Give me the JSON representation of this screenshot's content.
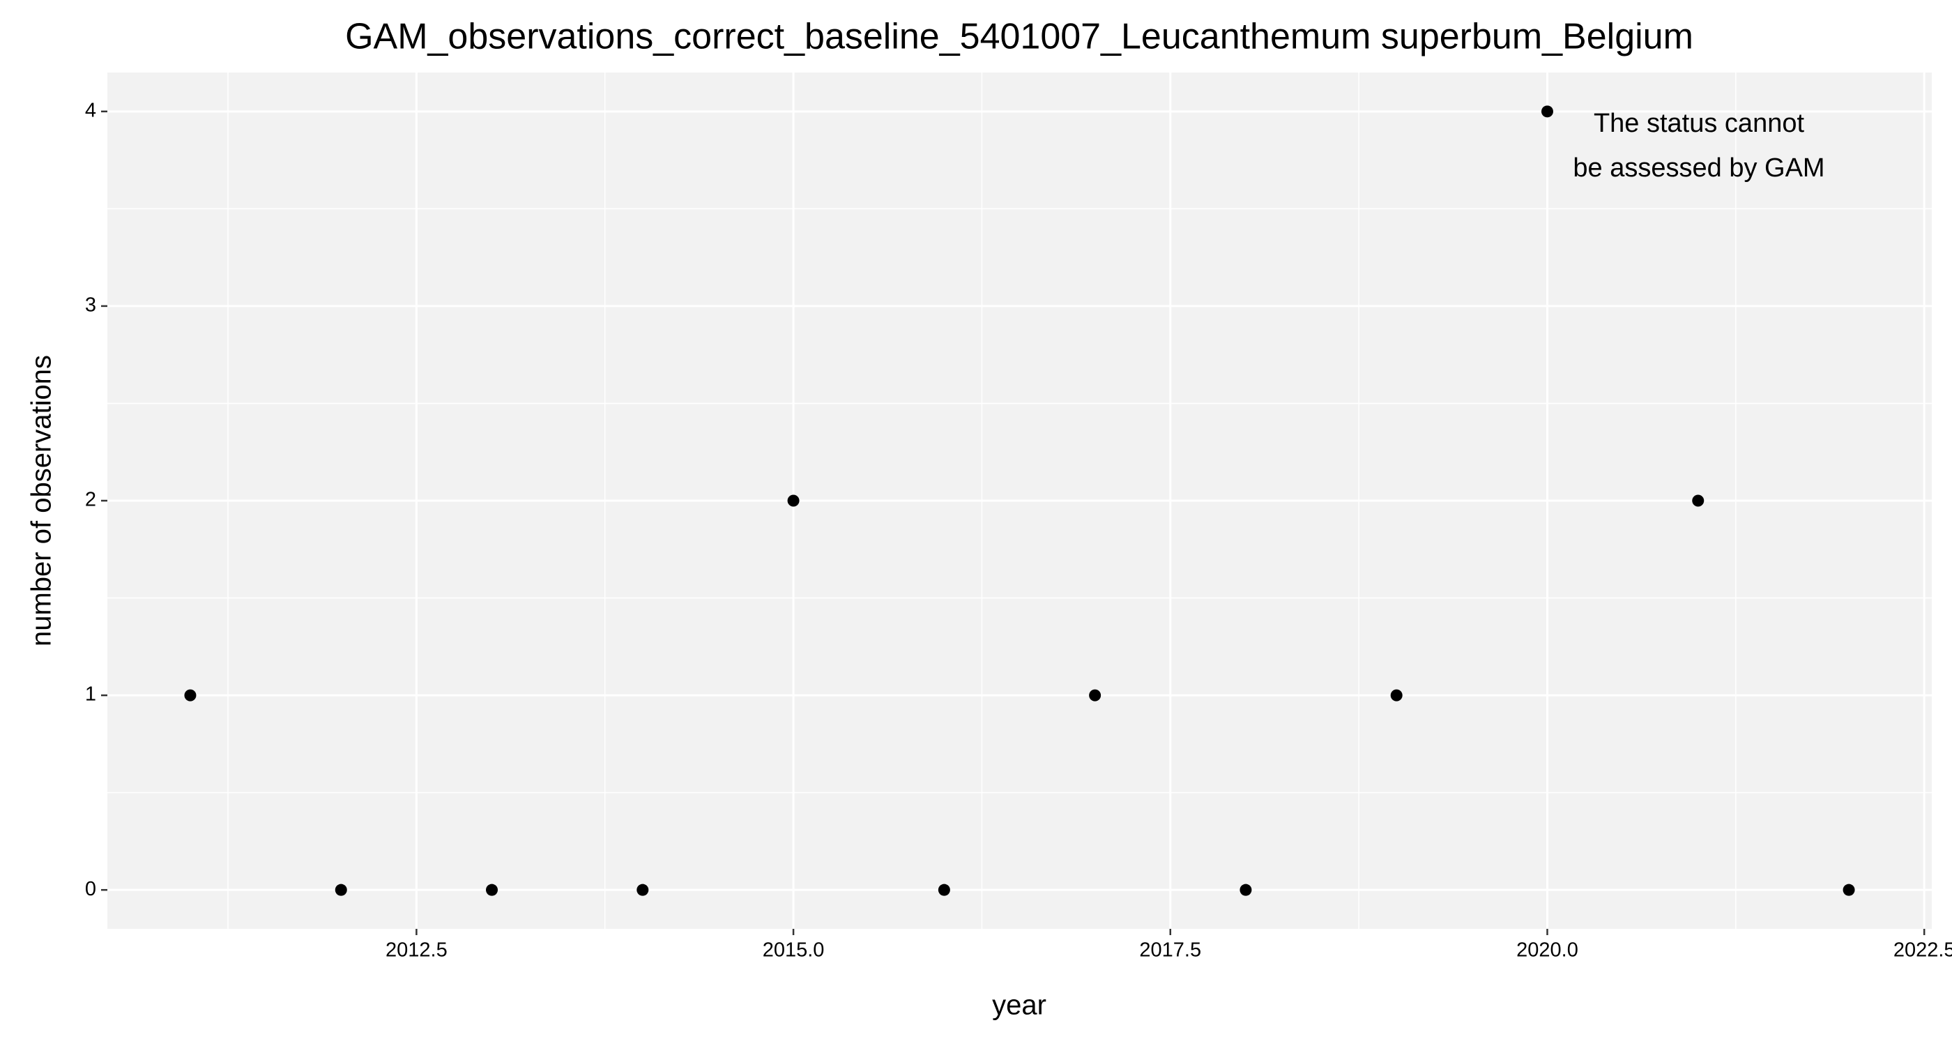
{
  "chart_data": {
    "type": "scatter",
    "title": "GAM_observations_correct_baseline_5401007_Leucanthemum superbum_Belgium",
    "x_label": "year",
    "y_label": "number of observations",
    "annotation": [
      "The status cannot",
      "be assessed by GAM"
    ],
    "annotation_color": "#ff0000",
    "x": [
      2011,
      2012,
      2013,
      2014,
      2015,
      2016,
      2017,
      2018,
      2019,
      2020,
      2021,
      2022
    ],
    "series": [
      {
        "name": "observations",
        "color": "#000000",
        "values": [
          1,
          0,
          0,
          0,
          2,
          0,
          1,
          0,
          1,
          4,
          2,
          0
        ]
      }
    ],
    "xlim": [
      2010.45,
      2022.55
    ],
    "ylim": [
      -0.2,
      4.2
    ],
    "xticks": [
      2012.5,
      {
        "value": 2015,
        "label": "2015.0"
      },
      2017.5,
      {
        "value": 2020,
        "label": "2020.0"
      },
      2022.5
    ],
    "yticks": [
      0,
      1,
      2,
      3,
      4
    ],
    "grid": true
  }
}
